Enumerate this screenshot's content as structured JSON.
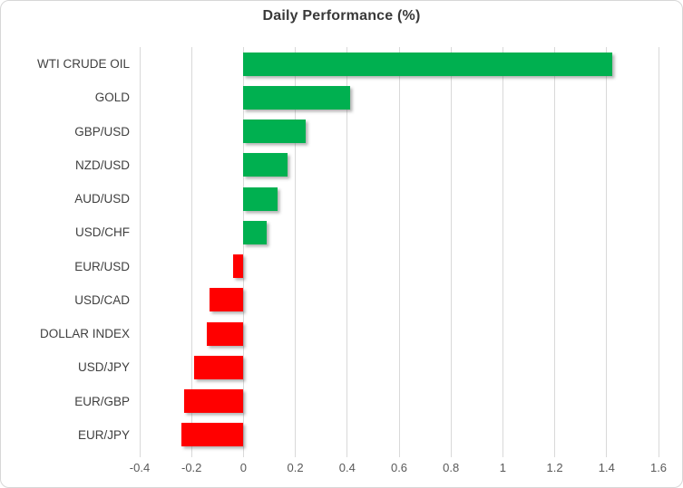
{
  "chart": {
    "title": "Daily Performance (%)",
    "colors": {
      "positive_bar": "#00B050",
      "negative_bar": "#FF0000",
      "gridline": "#D9D9D9",
      "title_text": "#393939",
      "category_text": "#3F3F3F",
      "tick_text": "#595959",
      "frame_border": "#D7D7D7",
      "background": "#FFFFFF"
    }
  },
  "chart_data": {
    "type": "bar",
    "orientation": "horizontal",
    "title": "Daily Performance (%)",
    "categories": [
      "WTI CRUDE OIL",
      "GOLD",
      "GBP/USD",
      "NZD/USD",
      "AUD/USD",
      "USD/CHF",
      "EUR/USD",
      "USD/CAD",
      "DOLLAR INDEX",
      "USD/JPY",
      "EUR/GBP",
      "EUR/JPY"
    ],
    "values": [
      1.42,
      0.41,
      0.24,
      0.17,
      0.13,
      0.09,
      -0.04,
      -0.13,
      -0.14,
      -0.19,
      -0.23,
      -0.24
    ],
    "xlabel": "",
    "ylabel": "",
    "xlim": [
      -0.4,
      1.6
    ],
    "xticks": [
      -0.4,
      -0.2,
      0,
      0.2,
      0.4,
      0.6,
      0.8,
      1,
      1.2,
      1.4,
      1.6
    ],
    "xtick_labels": [
      "-0.4",
      "-0.2",
      "0",
      "0.2",
      "0.4",
      "0.6",
      "0.8",
      "1",
      "1.2",
      "1.4",
      "1.6"
    ],
    "grid": "vertical-only",
    "legend": "none",
    "positive_color": "#00B050",
    "negative_color": "#FF0000"
  }
}
